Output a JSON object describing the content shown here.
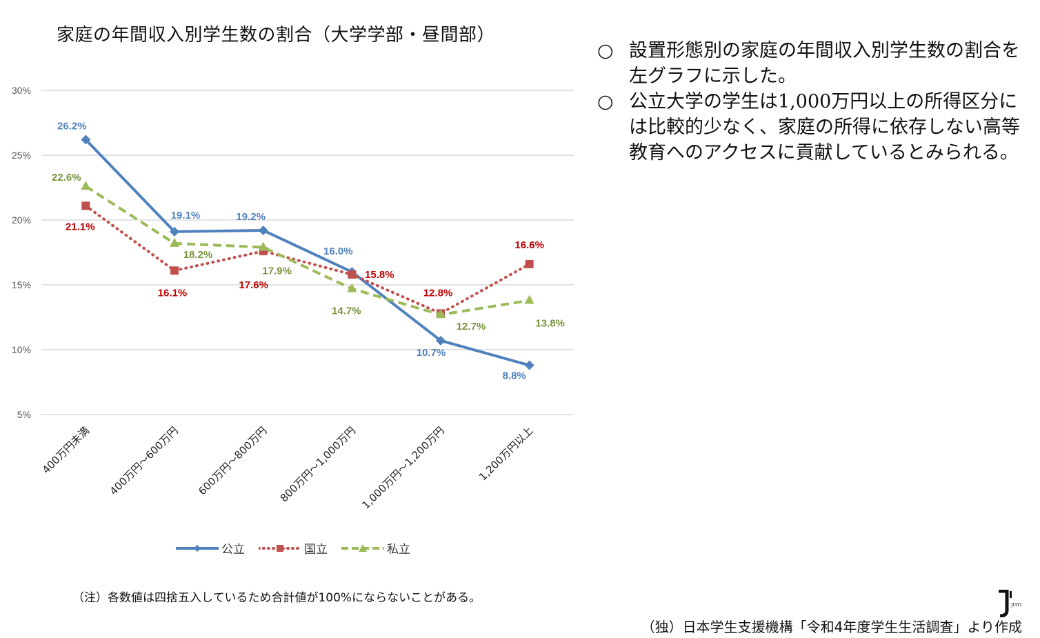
{
  "chart_data": {
    "type": "line",
    "title": "家庭の年間収入別学生数の割合（大学学部・昼間部）",
    "categories": [
      "400万円未満",
      "400万円～600万円",
      "600万円～800万円",
      "800万円～1,000万円",
      "1,000万円～1,200万円",
      "1,200万円以上"
    ],
    "ylim": [
      5,
      30
    ],
    "yticks": [
      "5%",
      "10%",
      "15%",
      "20%",
      "25%",
      "30%"
    ],
    "grid": true,
    "legend_position": "bottom",
    "series": [
      {
        "name": "公立",
        "color": "#4F81BD",
        "marker": "diamond",
        "dash": "solid",
        "values": [
          26.2,
          19.1,
          19.2,
          16.0,
          10.7,
          8.8
        ],
        "labels": [
          "26.2%",
          "19.1%",
          "19.2%",
          "16.0%",
          "10.7%",
          "8.8%"
        ]
      },
      {
        "name": "国立",
        "color": "#C0504D",
        "label_color": "#C00000",
        "marker": "square",
        "dash": "dotted",
        "values": [
          21.1,
          16.1,
          17.6,
          15.8,
          12.8,
          16.6
        ],
        "labels": [
          "21.1%",
          "16.1%",
          "17.6%",
          "15.8%",
          "12.8%",
          "16.6%"
        ]
      },
      {
        "name": "私立",
        "color": "#9BBB59",
        "label_color": "#77933C",
        "marker": "triangle",
        "dash": "dashed",
        "values": [
          22.6,
          18.2,
          17.9,
          14.7,
          12.7,
          13.8
        ],
        "labels": [
          "22.6%",
          "18.2%",
          "17.9%",
          "14.7%",
          "12.7%",
          "13.8%"
        ]
      }
    ]
  },
  "notes": [
    {
      "bullet": "○",
      "text": "設置形態別の家庭の年間収入別学生数の割合を左グラフに示した。"
    },
    {
      "bullet": "○",
      "text": "公立大学の学生は1,000万円以上の所得区分には比較的少なく、家庭の所得に依存しない高等教育へのアクセスに貢献しているとみられる。"
    }
  ],
  "footnote": "（注）各数値は四捨五入しているため合計値が100%にならないことがある。",
  "source": "（独）日本学生支援機構「令和4年度学生生活調査」より作成",
  "logo": "JIAYI"
}
